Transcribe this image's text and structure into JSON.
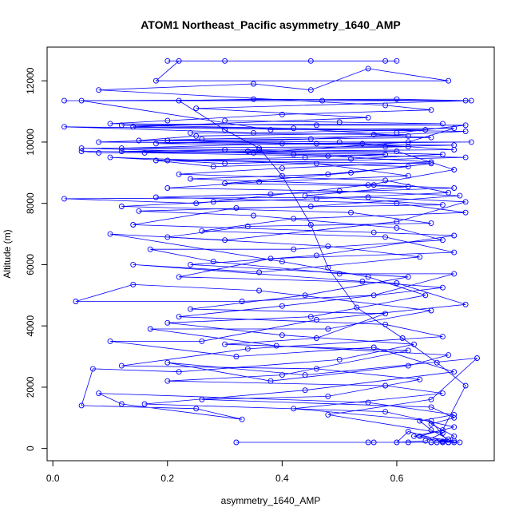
{
  "chart_data": {
    "type": "line",
    "title": "ATOM1 Northeast_Pacific asymmetry_1640_AMP",
    "xlabel": "asymmetry_1640_AMP",
    "ylabel": "Altitude (m)",
    "x_ticks": [
      "0.0",
      "0.2",
      "0.4",
      "0.6"
    ],
    "y_ticks": [
      "0",
      "2000",
      "4000",
      "6000",
      "8000",
      "10000",
      "12000"
    ],
    "xlim": [
      -0.01,
      0.77
    ],
    "ylim": [
      -400,
      13100
    ],
    "grid": false,
    "series_color": "#0000ff",
    "marker": "open-circle",
    "series": [
      {
        "points": [
          [
            0.56,
            200
          ],
          [
            0.32,
            200
          ],
          [
            0.55,
            200
          ],
          [
            0.62,
            200
          ],
          [
            0.66,
            200
          ],
          [
            0.7,
            200
          ],
          [
            0.71,
            200
          ],
          [
            0.68,
            230
          ],
          [
            0.63,
            400
          ],
          [
            0.68,
            600
          ],
          [
            0.72,
            2050
          ],
          [
            0.67,
            2800
          ],
          [
            0.61,
            3600
          ],
          [
            0.53,
            4600
          ],
          [
            0.48,
            5900
          ],
          [
            0.45,
            7300
          ],
          [
            0.4,
            8900
          ],
          [
            0.36,
            9800
          ],
          [
            0.3,
            10400
          ],
          [
            0.22,
            11350
          ],
          [
            0.35,
            11400
          ],
          [
            0.72,
            11350
          ],
          [
            0.47,
            11350
          ],
          [
            0.05,
            11350
          ],
          [
            0.38,
            10400
          ],
          [
            0.7,
            10450
          ],
          [
            0.62,
            10000
          ],
          [
            0.35,
            9650
          ],
          [
            0.05,
            9700
          ],
          [
            0.08,
            9650
          ],
          [
            0.6,
            9700
          ],
          [
            0.7,
            9100
          ],
          [
            0.55,
            8600
          ],
          [
            0.25,
            8000
          ],
          [
            0.02,
            8150
          ],
          [
            0.55,
            8200
          ],
          [
            0.72,
            8050
          ],
          [
            0.6,
            7400
          ],
          [
            0.3,
            6800
          ],
          [
            0.1,
            7000
          ],
          [
            0.4,
            6100
          ],
          [
            0.55,
            5600
          ],
          [
            0.65,
            5000
          ],
          [
            0.45,
            4300
          ],
          [
            0.2,
            4100
          ],
          [
            0.4,
            3700
          ],
          [
            0.63,
            3400
          ],
          [
            0.5,
            2900
          ],
          [
            0.22,
            2500
          ],
          [
            0.07,
            2600
          ],
          [
            0.05,
            1400
          ],
          [
            0.25,
            1300
          ],
          [
            0.33,
            950
          ],
          [
            0.12,
            1450
          ],
          [
            0.08,
            1800
          ],
          [
            0.55,
            1500
          ],
          [
            0.7,
            1100
          ],
          [
            0.64,
            900
          ],
          [
            0.66,
            600
          ],
          [
            0.69,
            300
          ],
          [
            0.67,
            200
          ]
        ]
      },
      {
        "points": [
          [
            0.2,
            12650
          ],
          [
            0.3,
            12650
          ],
          [
            0.45,
            12650
          ],
          [
            0.6,
            12650
          ],
          [
            0.58,
            12650
          ],
          [
            0.22,
            12650
          ],
          [
            0.18,
            12000
          ],
          [
            0.69,
            12000
          ],
          [
            0.55,
            12400
          ],
          [
            0.45,
            11700
          ],
          [
            0.35,
            11900
          ],
          [
            0.08,
            11700
          ],
          [
            0.58,
            11200
          ],
          [
            0.66,
            11050
          ],
          [
            0.4,
            10900
          ],
          [
            0.2,
            10700
          ],
          [
            0.1,
            10600
          ],
          [
            0.46,
            10550
          ],
          [
            0.72,
            10550
          ],
          [
            0.6,
            10300
          ],
          [
            0.25,
            10200
          ],
          [
            0.15,
            10050
          ],
          [
            0.5,
            10000
          ],
          [
            0.73,
            10000
          ],
          [
            0.4,
            9950
          ],
          [
            0.12,
            9800
          ],
          [
            0.3,
            9750
          ],
          [
            0.68,
            9600
          ],
          [
            0.52,
            9450
          ],
          [
            0.18,
            9400
          ],
          [
            0.28,
            9200
          ],
          [
            0.46,
            9300
          ],
          [
            0.62,
            8900
          ],
          [
            0.36,
            8700
          ],
          [
            0.2,
            8500
          ],
          [
            0.5,
            8400
          ],
          [
            0.71,
            8250
          ],
          [
            0.45,
            7900
          ],
          [
            0.15,
            7750
          ],
          [
            0.35,
            7600
          ],
          [
            0.6,
            7200
          ],
          [
            0.68,
            6800
          ],
          [
            0.42,
            6500
          ],
          [
            0.17,
            6500
          ],
          [
            0.28,
            6100
          ],
          [
            0.5,
            5700
          ],
          [
            0.7,
            5700
          ],
          [
            0.56,
            5000
          ],
          [
            0.33,
            4800
          ],
          [
            0.04,
            4800
          ],
          [
            0.14,
            5350
          ],
          [
            0.36,
            5150
          ],
          [
            0.66,
            4500
          ],
          [
            0.48,
            3900
          ],
          [
            0.17,
            3900
          ],
          [
            0.39,
            3350
          ],
          [
            0.69,
            3050
          ],
          [
            0.62,
            2700
          ],
          [
            0.38,
            2200
          ],
          [
            0.2,
            2800
          ],
          [
            0.44,
            2400
          ],
          [
            0.74,
            2950
          ],
          [
            0.66,
            1600
          ],
          [
            0.48,
            1100
          ],
          [
            0.68,
            500
          ],
          [
            0.65,
            250
          ],
          [
            0.6,
            200
          ],
          [
            0.62,
            550
          ],
          [
            0.69,
            200
          ]
        ]
      },
      {
        "points": [
          [
            0.02,
            11350
          ],
          [
            0.6,
            11400
          ],
          [
            0.73,
            11350
          ],
          [
            0.25,
            11100
          ],
          [
            0.55,
            10800
          ],
          [
            0.14,
            10500
          ],
          [
            0.65,
            10400
          ],
          [
            0.35,
            10300
          ],
          [
            0.02,
            10500
          ],
          [
            0.72,
            10350
          ],
          [
            0.45,
            10100
          ],
          [
            0.18,
            9950
          ],
          [
            0.7,
            9900
          ],
          [
            0.58,
            9850
          ],
          [
            0.05,
            9800
          ],
          [
            0.42,
            9600
          ],
          [
            0.72,
            9500
          ],
          [
            0.3,
            9300
          ],
          [
            0.1,
            9500
          ],
          [
            0.62,
            9200
          ],
          [
            0.48,
            8950
          ],
          [
            0.24,
            8800
          ],
          [
            0.56,
            8600
          ],
          [
            0.7,
            8500
          ],
          [
            0.38,
            8300
          ],
          [
            0.18,
            8200
          ],
          [
            0.6,
            8000
          ],
          [
            0.72,
            7700
          ],
          [
            0.42,
            7500
          ],
          [
            0.26,
            7100
          ],
          [
            0.58,
            6900
          ],
          [
            0.7,
            6400
          ],
          [
            0.38,
            6200
          ],
          [
            0.22,
            5600
          ],
          [
            0.6,
            5400
          ],
          [
            0.72,
            4700
          ],
          [
            0.46,
            4200
          ],
          [
            0.26,
            3500
          ],
          [
            0.1,
            3500
          ],
          [
            0.32,
            3000
          ],
          [
            0.56,
            3300
          ],
          [
            0.7,
            2500
          ],
          [
            0.44,
            1900
          ],
          [
            0.16,
            1450
          ],
          [
            0.58,
            1200
          ],
          [
            0.7,
            700
          ],
          [
            0.64,
            400
          ],
          [
            0.7,
            250
          ],
          [
            0.66,
            200
          ]
        ]
      },
      {
        "points": [
          [
            0.3,
            10700
          ],
          [
            0.5,
            10650
          ],
          [
            0.68,
            10600
          ],
          [
            0.12,
            10550
          ],
          [
            0.42,
            10450
          ],
          [
            0.62,
            10200
          ],
          [
            0.26,
            10100
          ],
          [
            0.08,
            10000
          ],
          [
            0.54,
            9950
          ],
          [
            0.7,
            9750
          ],
          [
            0.34,
            9700
          ],
          [
            0.16,
            9650
          ],
          [
            0.48,
            9550
          ],
          [
            0.66,
            9350
          ],
          [
            0.4,
            9150
          ],
          [
            0.22,
            8950
          ],
          [
            0.58,
            8750
          ],
          [
            0.69,
            8350
          ],
          [
            0.46,
            8150
          ],
          [
            0.28,
            8050
          ],
          [
            0.12,
            7900
          ],
          [
            0.52,
            7700
          ],
          [
            0.66,
            7350
          ],
          [
            0.34,
            7250
          ],
          [
            0.2,
            6900
          ],
          [
            0.48,
            6600
          ],
          [
            0.64,
            6250
          ],
          [
            0.36,
            5750
          ],
          [
            0.14,
            6000
          ],
          [
            0.54,
            5450
          ],
          [
            0.68,
            5250
          ],
          [
            0.4,
            4650
          ],
          [
            0.22,
            4300
          ],
          [
            0.58,
            4050
          ],
          [
            0.68,
            3650
          ],
          [
            0.34,
            3250
          ],
          [
            0.12,
            2700
          ],
          [
            0.46,
            2600
          ],
          [
            0.64,
            2250
          ],
          [
            0.48,
            1700
          ],
          [
            0.26,
            1600
          ],
          [
            0.66,
            1350
          ],
          [
            0.7,
            1000
          ],
          [
            0.66,
            800
          ],
          [
            0.7,
            400
          ],
          [
            0.68,
            200
          ]
        ]
      },
      {
        "points": [
          [
            0.24,
            10300
          ],
          [
            0.56,
            10250
          ],
          [
            0.66,
            10150
          ],
          [
            0.2,
            10050
          ],
          [
            0.46,
            9950
          ],
          [
            0.62,
            9850
          ],
          [
            0.36,
            9750
          ],
          [
            0.12,
            9700
          ],
          [
            0.58,
            9600
          ],
          [
            0.44,
            9500
          ],
          [
            0.2,
            9400
          ],
          [
            0.66,
            9300
          ],
          [
            0.52,
            9000
          ],
          [
            0.3,
            8650
          ],
          [
            0.62,
            8550
          ],
          [
            0.44,
            8250
          ],
          [
            0.68,
            7950
          ],
          [
            0.32,
            7850
          ],
          [
            0.14,
            7300
          ],
          [
            0.56,
            7050
          ],
          [
            0.7,
            6950
          ],
          [
            0.46,
            6300
          ],
          [
            0.24,
            6000
          ],
          [
            0.62,
            5600
          ],
          [
            0.44,
            5000
          ],
          [
            0.24,
            4550
          ],
          [
            0.58,
            4400
          ],
          [
            0.46,
            3600
          ],
          [
            0.3,
            3400
          ],
          [
            0.62,
            3200
          ],
          [
            0.4,
            2400
          ],
          [
            0.2,
            2200
          ],
          [
            0.58,
            2050
          ],
          [
            0.68,
            1800
          ],
          [
            0.42,
            1300
          ],
          [
            0.66,
            900
          ],
          [
            0.69,
            200
          ]
        ]
      }
    ]
  }
}
